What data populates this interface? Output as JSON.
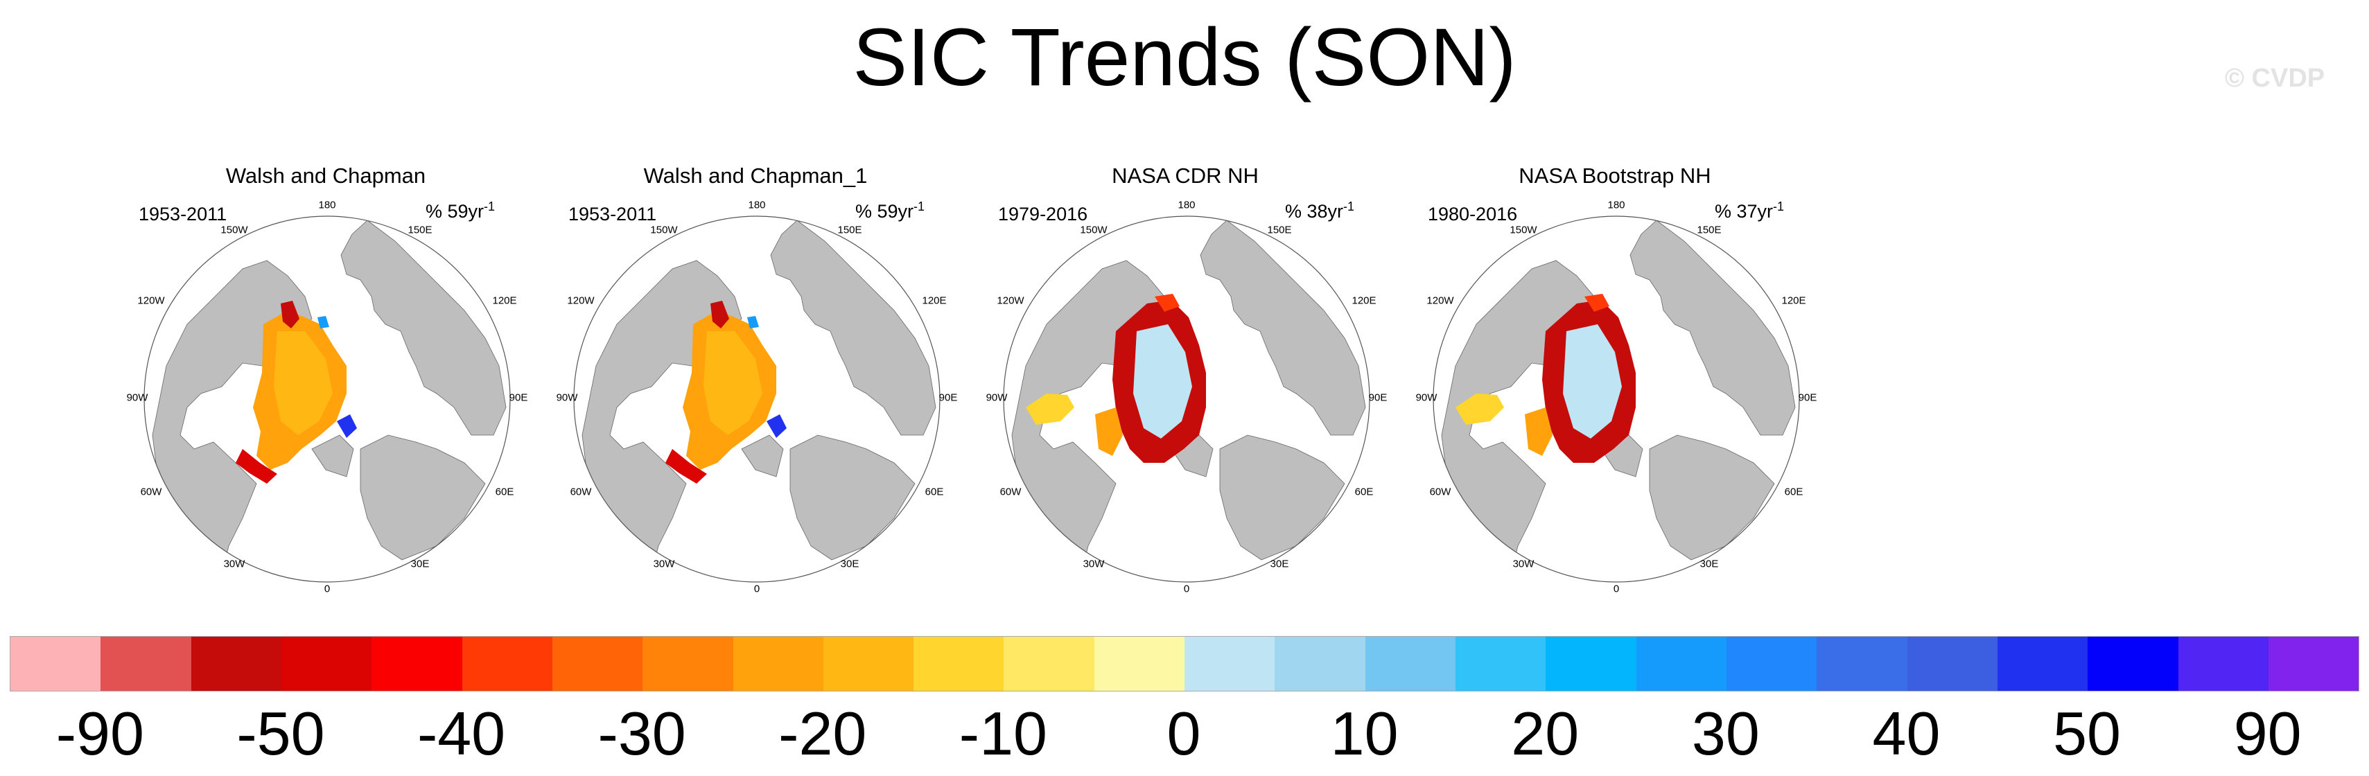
{
  "title": "SIC Trends (SON)",
  "watermark": "© CVDP",
  "panels": [
    {
      "title": "Walsh and Chapman",
      "period": "1953-2011",
      "units_prefix": "% 59yr",
      "units_exp": "-1",
      "style": "walsh"
    },
    {
      "title": "Walsh and Chapman_1",
      "period": "1953-2011",
      "units_prefix": "% 59yr",
      "units_exp": "-1",
      "style": "walsh"
    },
    {
      "title": "NASA CDR NH",
      "period": "1979-2016",
      "units_prefix": "% 38yr",
      "units_exp": "-1",
      "style": "nasa"
    },
    {
      "title": "NASA Bootstrap NH",
      "period": "1980-2016",
      "units_prefix": "% 37yr",
      "units_exp": "-1",
      "style": "nasa"
    }
  ],
  "longitude_labels": {
    "top": "180",
    "upper_left": "150W",
    "upper_right": "150E",
    "left_upper": "120W",
    "right_upper": "120E",
    "left": "90W",
    "right": "90E",
    "left_lower": "60W",
    "right_lower": "60E",
    "lower_left": "30W",
    "lower_right": "30E",
    "bottom": "0"
  },
  "colorbar": {
    "colors": [
      "#fdb3b5",
      "#e25252",
      "#c60b0b",
      "#dc0303",
      "#fb0000",
      "#ff3a05",
      "#ff6406",
      "#ff8309",
      "#ffa20c",
      "#ffb714",
      "#ffd52e",
      "#fee864",
      "#fdf8a4",
      "#bfe4f4",
      "#a0d6f0",
      "#74c6f2",
      "#31c2fa",
      "#02b5fd",
      "#149bfc",
      "#2087fc",
      "#3a6ee8",
      "#3c5ee1",
      "#2032ef",
      "#0300fc",
      "#5125f4",
      "#8122ed"
    ],
    "labels": [
      "-90",
      "-50",
      "-40",
      "-30",
      "-20",
      "-10",
      "0",
      "10",
      "20",
      "30",
      "40",
      "50",
      "90"
    ]
  }
}
